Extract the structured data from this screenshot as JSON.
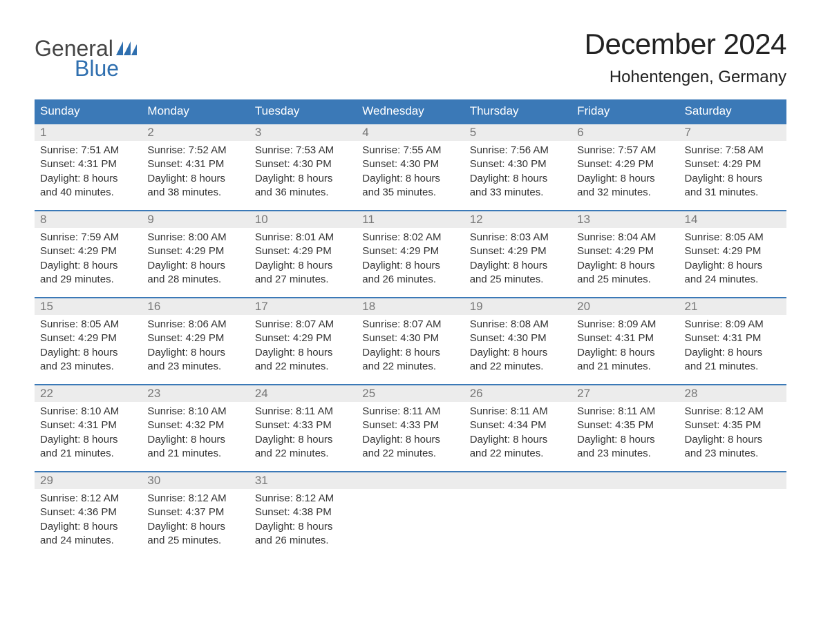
{
  "logo": {
    "word1": "General",
    "word2": "Blue"
  },
  "title": "December 2024",
  "subtitle": "Hohentengen, Germany",
  "colors": {
    "header_bg": "#3b79b7",
    "header_text": "#ffffff",
    "daynum_bg": "#ececec",
    "daynum_border": "#3b79b7",
    "daynum_text": "#777777",
    "body_text": "#333333",
    "logo_blue": "#2f6faf",
    "page_bg": "#ffffff"
  },
  "day_headers": [
    "Sunday",
    "Monday",
    "Tuesday",
    "Wednesday",
    "Thursday",
    "Friday",
    "Saturday"
  ],
  "weeks": [
    [
      {
        "num": "1",
        "sunrise": "Sunrise: 7:51 AM",
        "sunset": "Sunset: 4:31 PM",
        "day1": "Daylight: 8 hours",
        "day2": "and 40 minutes."
      },
      {
        "num": "2",
        "sunrise": "Sunrise: 7:52 AM",
        "sunset": "Sunset: 4:31 PM",
        "day1": "Daylight: 8 hours",
        "day2": "and 38 minutes."
      },
      {
        "num": "3",
        "sunrise": "Sunrise: 7:53 AM",
        "sunset": "Sunset: 4:30 PM",
        "day1": "Daylight: 8 hours",
        "day2": "and 36 minutes."
      },
      {
        "num": "4",
        "sunrise": "Sunrise: 7:55 AM",
        "sunset": "Sunset: 4:30 PM",
        "day1": "Daylight: 8 hours",
        "day2": "and 35 minutes."
      },
      {
        "num": "5",
        "sunrise": "Sunrise: 7:56 AM",
        "sunset": "Sunset: 4:30 PM",
        "day1": "Daylight: 8 hours",
        "day2": "and 33 minutes."
      },
      {
        "num": "6",
        "sunrise": "Sunrise: 7:57 AM",
        "sunset": "Sunset: 4:29 PM",
        "day1": "Daylight: 8 hours",
        "day2": "and 32 minutes."
      },
      {
        "num": "7",
        "sunrise": "Sunrise: 7:58 AM",
        "sunset": "Sunset: 4:29 PM",
        "day1": "Daylight: 8 hours",
        "day2": "and 31 minutes."
      }
    ],
    [
      {
        "num": "8",
        "sunrise": "Sunrise: 7:59 AM",
        "sunset": "Sunset: 4:29 PM",
        "day1": "Daylight: 8 hours",
        "day2": "and 29 minutes."
      },
      {
        "num": "9",
        "sunrise": "Sunrise: 8:00 AM",
        "sunset": "Sunset: 4:29 PM",
        "day1": "Daylight: 8 hours",
        "day2": "and 28 minutes."
      },
      {
        "num": "10",
        "sunrise": "Sunrise: 8:01 AM",
        "sunset": "Sunset: 4:29 PM",
        "day1": "Daylight: 8 hours",
        "day2": "and 27 minutes."
      },
      {
        "num": "11",
        "sunrise": "Sunrise: 8:02 AM",
        "sunset": "Sunset: 4:29 PM",
        "day1": "Daylight: 8 hours",
        "day2": "and 26 minutes."
      },
      {
        "num": "12",
        "sunrise": "Sunrise: 8:03 AM",
        "sunset": "Sunset: 4:29 PM",
        "day1": "Daylight: 8 hours",
        "day2": "and 25 minutes."
      },
      {
        "num": "13",
        "sunrise": "Sunrise: 8:04 AM",
        "sunset": "Sunset: 4:29 PM",
        "day1": "Daylight: 8 hours",
        "day2": "and 25 minutes."
      },
      {
        "num": "14",
        "sunrise": "Sunrise: 8:05 AM",
        "sunset": "Sunset: 4:29 PM",
        "day1": "Daylight: 8 hours",
        "day2": "and 24 minutes."
      }
    ],
    [
      {
        "num": "15",
        "sunrise": "Sunrise: 8:05 AM",
        "sunset": "Sunset: 4:29 PM",
        "day1": "Daylight: 8 hours",
        "day2": "and 23 minutes."
      },
      {
        "num": "16",
        "sunrise": "Sunrise: 8:06 AM",
        "sunset": "Sunset: 4:29 PM",
        "day1": "Daylight: 8 hours",
        "day2": "and 23 minutes."
      },
      {
        "num": "17",
        "sunrise": "Sunrise: 8:07 AM",
        "sunset": "Sunset: 4:29 PM",
        "day1": "Daylight: 8 hours",
        "day2": "and 22 minutes."
      },
      {
        "num": "18",
        "sunrise": "Sunrise: 8:07 AM",
        "sunset": "Sunset: 4:30 PM",
        "day1": "Daylight: 8 hours",
        "day2": "and 22 minutes."
      },
      {
        "num": "19",
        "sunrise": "Sunrise: 8:08 AM",
        "sunset": "Sunset: 4:30 PM",
        "day1": "Daylight: 8 hours",
        "day2": "and 22 minutes."
      },
      {
        "num": "20",
        "sunrise": "Sunrise: 8:09 AM",
        "sunset": "Sunset: 4:31 PM",
        "day1": "Daylight: 8 hours",
        "day2": "and 21 minutes."
      },
      {
        "num": "21",
        "sunrise": "Sunrise: 8:09 AM",
        "sunset": "Sunset: 4:31 PM",
        "day1": "Daylight: 8 hours",
        "day2": "and 21 minutes."
      }
    ],
    [
      {
        "num": "22",
        "sunrise": "Sunrise: 8:10 AM",
        "sunset": "Sunset: 4:31 PM",
        "day1": "Daylight: 8 hours",
        "day2": "and 21 minutes."
      },
      {
        "num": "23",
        "sunrise": "Sunrise: 8:10 AM",
        "sunset": "Sunset: 4:32 PM",
        "day1": "Daylight: 8 hours",
        "day2": "and 21 minutes."
      },
      {
        "num": "24",
        "sunrise": "Sunrise: 8:11 AM",
        "sunset": "Sunset: 4:33 PM",
        "day1": "Daylight: 8 hours",
        "day2": "and 22 minutes."
      },
      {
        "num": "25",
        "sunrise": "Sunrise: 8:11 AM",
        "sunset": "Sunset: 4:33 PM",
        "day1": "Daylight: 8 hours",
        "day2": "and 22 minutes."
      },
      {
        "num": "26",
        "sunrise": "Sunrise: 8:11 AM",
        "sunset": "Sunset: 4:34 PM",
        "day1": "Daylight: 8 hours",
        "day2": "and 22 minutes."
      },
      {
        "num": "27",
        "sunrise": "Sunrise: 8:11 AM",
        "sunset": "Sunset: 4:35 PM",
        "day1": "Daylight: 8 hours",
        "day2": "and 23 minutes."
      },
      {
        "num": "28",
        "sunrise": "Sunrise: 8:12 AM",
        "sunset": "Sunset: 4:35 PM",
        "day1": "Daylight: 8 hours",
        "day2": "and 23 minutes."
      }
    ],
    [
      {
        "num": "29",
        "sunrise": "Sunrise: 8:12 AM",
        "sunset": "Sunset: 4:36 PM",
        "day1": "Daylight: 8 hours",
        "day2": "and 24 minutes."
      },
      {
        "num": "30",
        "sunrise": "Sunrise: 8:12 AM",
        "sunset": "Sunset: 4:37 PM",
        "day1": "Daylight: 8 hours",
        "day2": "and 25 minutes."
      },
      {
        "num": "31",
        "sunrise": "Sunrise: 8:12 AM",
        "sunset": "Sunset: 4:38 PM",
        "day1": "Daylight: 8 hours",
        "day2": "and 26 minutes."
      },
      null,
      null,
      null,
      null
    ]
  ]
}
